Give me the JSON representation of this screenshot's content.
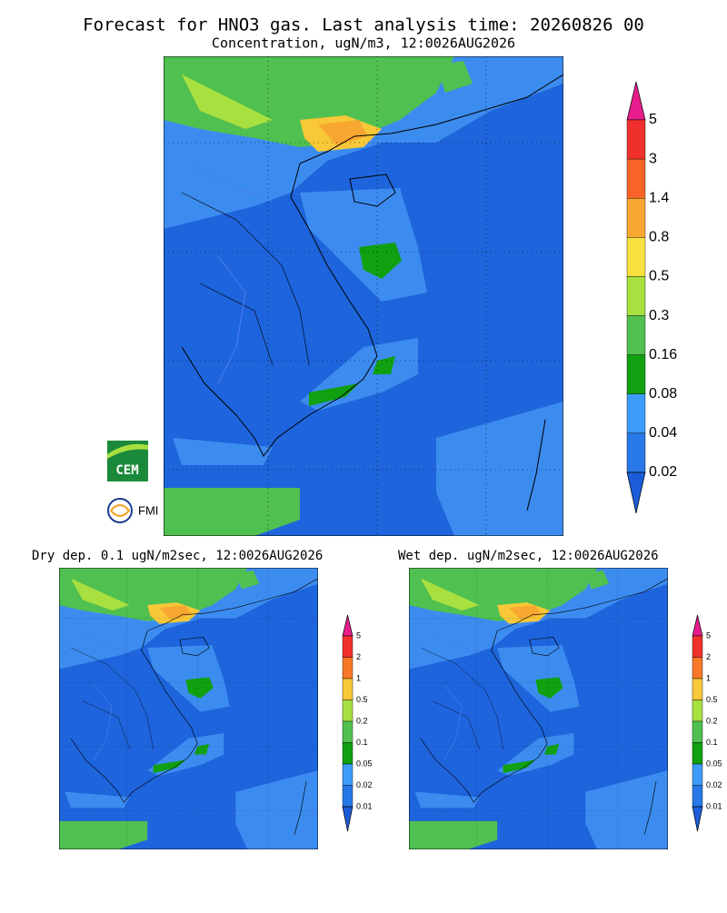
{
  "header": {
    "title": "Forecast for HNO3 gas. Last analysis time: 20260826 00",
    "subtitle": "Concentration, ugN/m3, 12:0026AUG2026"
  },
  "logos": [
    "CEM",
    "FMI"
  ],
  "main_colorbar": {
    "labels": [
      "5",
      "3",
      "1.4",
      "0.8",
      "0.5",
      "0.3",
      "0.16",
      "0.08",
      "0.04",
      "0.02"
    ],
    "colors": [
      "#e81c8c",
      "#f0302c",
      "#f86428",
      "#f8a830",
      "#f8e040",
      "#a8e040",
      "#50c050",
      "#10a010",
      "#3c9cf8",
      "#2878e8",
      "#1c5cd8"
    ]
  },
  "panels": [
    {
      "title": "Dry dep. 0.1 ugN/m2sec, 12:0026AUG2026",
      "colorbar": {
        "labels": [
          "5",
          "2",
          "1",
          "0.5",
          "0.2",
          "0.1",
          "0.05",
          "0.02",
          "0.01"
        ],
        "colors": [
          "#e81c8c",
          "#f0302c",
          "#f87828",
          "#f8c838",
          "#a8e040",
          "#50c050",
          "#10a010",
          "#3c9cf8",
          "#2878e8",
          "#1c5cd8"
        ]
      }
    },
    {
      "title": "Wet dep. ugN/m2sec, 12:0026AUG2026",
      "colorbar": {
        "labels": [
          "5",
          "2",
          "1",
          "0.5",
          "0.2",
          "0.1",
          "0.05",
          "0.02",
          "0.01"
        ],
        "colors": [
          "#e81c8c",
          "#f0302c",
          "#f87828",
          "#f8c838",
          "#a8e040",
          "#50c050",
          "#10a010",
          "#3c9cf8",
          "#2878e8",
          "#1c5cd8"
        ]
      }
    }
  ]
}
